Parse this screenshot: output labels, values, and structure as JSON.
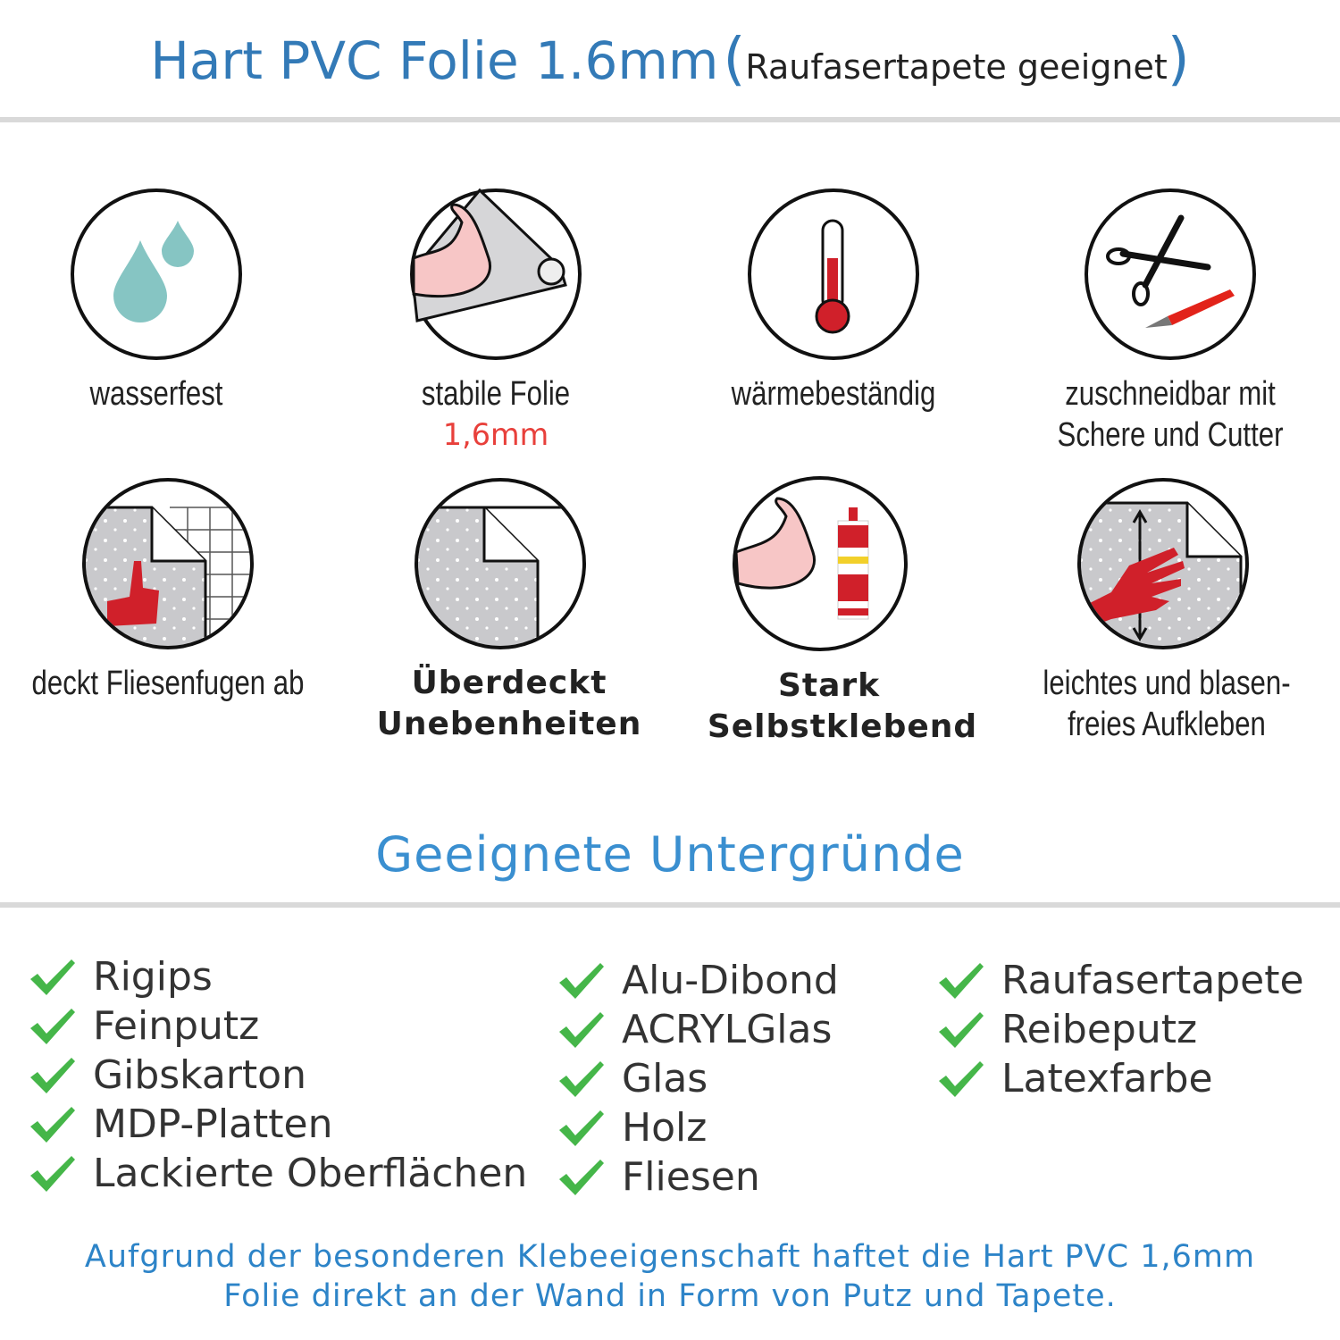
{
  "header": {
    "title": "Hart PVC Folie 1.6mm",
    "paren_open": "(",
    "subtitle": "Raufasertapete geeignet",
    "paren_close": ")"
  },
  "features": [
    {
      "icon": "water-drops-icon",
      "label": "wasserfest"
    },
    {
      "icon": "strong-film-icon",
      "label": "stabile Folie",
      "highlight": "1,6mm"
    },
    {
      "icon": "thermometer-icon",
      "label": "wärmebeständig"
    },
    {
      "icon": "scissors-cutter-icon",
      "label_lines": [
        "zuschneidbar mit",
        "Schere und Cutter"
      ]
    },
    {
      "icon": "tile-cover-icon",
      "label": "deckt Fliesenfugen ab"
    },
    {
      "icon": "uneven-surface-icon",
      "label_lines": [
        "Überdeckt",
        "Unebenheiten"
      ]
    },
    {
      "icon": "strong-adhesive-icon",
      "label_lines": [
        "Stark",
        "Selbstklebend"
      ]
    },
    {
      "icon": "hand-smoothing-icon",
      "label_lines": [
        "leichtes und blasen-",
        "freies Aufkleben"
      ]
    }
  ],
  "surfaces": {
    "title": "Geeignete Untergründe",
    "columns": [
      [
        "Rigips",
        "Feinputz",
        "Gibskarton",
        "MDP-Platten",
        "Lackierte Oberflächen"
      ],
      [
        "Alu-Dibond",
        "ACRYLGlas",
        "Glas",
        "Holz",
        "Fliesen"
      ],
      [
        "Raufasertapete",
        "Reibeputz",
        "Latexfarbe"
      ]
    ]
  },
  "footer": {
    "line1": "Aufgrund der besonderen Klebeeigenschaft haftet die Hart PVC 1,6mm",
    "line2": "Folie direkt an der Wand in Form von Putz und Tapete."
  },
  "colors": {
    "title_blue": "#337ab7",
    "accent_blue": "#3a8fd0",
    "check_green": "#45b649",
    "highlight_red": "#e8403b",
    "rule_gray": "#d9d9d9"
  }
}
